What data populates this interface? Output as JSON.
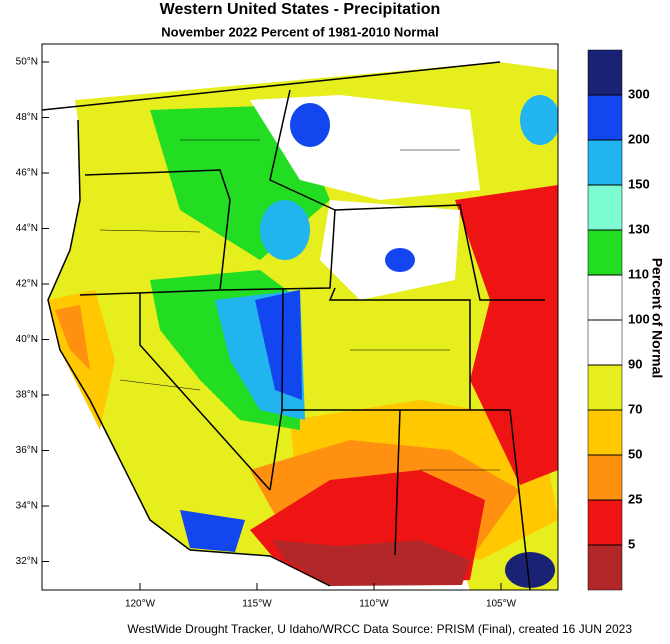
{
  "title": "Western United States - Precipitation",
  "subtitle": "November 2022  Percent of 1981-2010 Normal",
  "colorbar": {
    "label": "Percent of Normal",
    "levels": [
      300,
      200,
      150,
      130,
      110,
      100,
      90,
      70,
      50,
      25,
      5
    ],
    "colors": [
      "#1a2276",
      "#1246ee",
      "#22b4ee",
      "#7dfcd2",
      "#22dd22",
      "#ffffff",
      "#ffffff",
      "#e6ee1e",
      "#ffc800",
      "#ff9010",
      "#ee1414",
      "#b22828"
    ]
  },
  "latitude_labels": [
    "50°N",
    "48°N",
    "46°N",
    "44°N",
    "42°N",
    "40°N",
    "38°N",
    "36°N",
    "34°N",
    "32°N"
  ],
  "longitude_labels": [
    "120°W",
    "115°W",
    "110°W",
    "105°W"
  ],
  "footer": "WestWide Drought Tracker, U Idaho/WRCC Data Source: PRISM (Final), created 16 JUN 2023"
}
